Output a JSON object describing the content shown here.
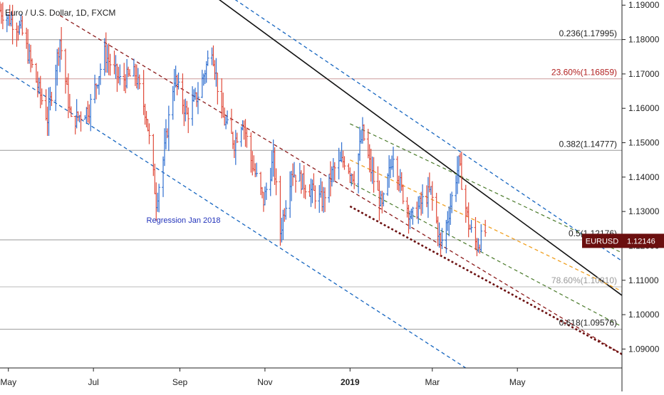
{
  "chart_data": {
    "type": "candlestick-bars",
    "title": "Euro / U.S. Dollar, 1D, FXCM",
    "symbol_badge": "EURUSD",
    "last_price": 1.12146,
    "last_price_label": "1.12146",
    "ylim": [
      1.0845,
      1.1915
    ],
    "y_ticks": [
      "1.19000",
      "1.18000",
      "1.17000",
      "1.16000",
      "1.15000",
      "1.14000",
      "1.13000",
      "1.12000",
      "1.11000",
      "1.10000",
      "1.09000"
    ],
    "y_tick_values": [
      1.19,
      1.18,
      1.17,
      1.16,
      1.15,
      1.14,
      1.13,
      1.12,
      1.11,
      1.1,
      1.09
    ],
    "x_ticks": [
      {
        "label": "May",
        "date": "2018-05-01",
        "bold": false
      },
      {
        "label": "Jul",
        "date": "2018-07-01",
        "bold": false
      },
      {
        "label": "Sep",
        "date": "2018-09-01",
        "bold": false
      },
      {
        "label": "Nov",
        "date": "2018-11-01",
        "bold": false
      },
      {
        "label": "2019",
        "date": "2019-01-01",
        "bold": true
      },
      {
        "label": "Mar",
        "date": "2019-03-01",
        "bold": false
      },
      {
        "label": "May",
        "date": "2019-05-01",
        "bold": false
      }
    ],
    "x_range": [
      "2018-04-25",
      "2019-07-15"
    ],
    "levels": [
      {
        "label": "0.236(1.17995)",
        "value": 1.17995,
        "color": "#999999",
        "text_color": "#222222"
      },
      {
        "label": "23.60%(1.16859)",
        "value": 1.16859,
        "color": "#cc9a9a",
        "text_color": "#b22222"
      },
      {
        "label": "0.382(1.14777)",
        "value": 1.14777,
        "color": "#999999",
        "text_color": "#222222"
      },
      {
        "label": "0.5(1.12176)",
        "value": 1.12176,
        "color": "#999999",
        "text_color": "#222222"
      },
      {
        "label": "78.60%(1.10810)",
        "value": 1.1081,
        "color": "#bbbbbb",
        "text_color": "#999999"
      },
      {
        "label": "0.618(1.09576)",
        "value": 1.09576,
        "color": "#999999",
        "text_color": "#222222"
      }
    ],
    "annotations": [
      {
        "text": "Regression Jan 2018",
        "date": "2018-08-08",
        "value": 1.1267
      }
    ],
    "trend_lines": [
      {
        "name": "downtrend",
        "color": "#111111",
        "dash": "",
        "width": 1.6,
        "from": [
          "2018-09-01",
          1.2
        ],
        "to": [
          "2019-07-15",
          1.1056
        ]
      },
      {
        "name": "regression-upper",
        "color": "#1565c0",
        "dash": "5,4",
        "width": 1.3,
        "from": [
          "2018-09-10",
          1.2
        ],
        "to": [
          "2019-07-15",
          1.1156
        ]
      },
      {
        "name": "regression-lower",
        "color": "#1565c0",
        "dash": "5,4",
        "width": 1.3,
        "from": [
          "2018-04-25",
          1.172
        ],
        "to": [
          "2019-03-25",
          1.0845
        ]
      },
      {
        "name": "regression-mid",
        "color": "#8b1a1a",
        "dash": "5,4",
        "width": 1.3,
        "from": [
          "2018-06-07",
          1.187
        ],
        "to": [
          "2019-07-15",
          1.0885
        ]
      },
      {
        "name": "channel-upper",
        "color": "#4a7a2a",
        "dash": "5,4",
        "width": 1.2,
        "from": [
          "2019-01-01",
          1.1555
        ],
        "to": [
          "2019-07-15",
          1.118
        ]
      },
      {
        "name": "channel-mid",
        "color": "#f0a020",
        "dash": "5,4",
        "width": 1.3,
        "from": [
          "2019-01-01",
          1.145
        ],
        "to": [
          "2019-07-15",
          1.1068
        ]
      },
      {
        "name": "channel-lower",
        "color": "#4a7a2a",
        "dash": "5,4",
        "width": 1.2,
        "from": [
          "2019-01-01",
          1.1385
        ],
        "to": [
          "2019-07-15",
          1.0965
        ]
      },
      {
        "name": "channel-base",
        "color": "#6b0f0f",
        "dash": "3,3",
        "width": 2.6,
        "from": [
          "2019-01-01",
          1.1315
        ],
        "to": [
          "2019-07-15",
          1.0885
        ]
      }
    ],
    "price_path": [
      [
        "2018-04-25",
        1.1885
      ],
      [
        "2018-05-10",
        1.183
      ],
      [
        "2018-05-18",
        1.172
      ],
      [
        "2018-05-29",
        1.157
      ],
      [
        "2018-06-07",
        1.18
      ],
      [
        "2018-06-15",
        1.156
      ],
      [
        "2018-06-28",
        1.16
      ],
      [
        "2018-07-09",
        1.176
      ],
      [
        "2018-07-20",
        1.168
      ],
      [
        "2018-07-31",
        1.17
      ],
      [
        "2018-08-08",
        1.158
      ],
      [
        "2018-08-15",
        1.133
      ],
      [
        "2018-08-20",
        1.145
      ],
      [
        "2018-08-28",
        1.169
      ],
      [
        "2018-09-06",
        1.158
      ],
      [
        "2018-09-14",
        1.164
      ],
      [
        "2018-09-24",
        1.178
      ],
      [
        "2018-10-01",
        1.158
      ],
      [
        "2018-10-10",
        1.15
      ],
      [
        "2018-10-16",
        1.157
      ],
      [
        "2018-10-22",
        1.145
      ],
      [
        "2018-10-31",
        1.133
      ],
      [
        "2018-11-07",
        1.145
      ],
      [
        "2018-11-12",
        1.124
      ],
      [
        "2018-11-20",
        1.142
      ],
      [
        "2018-11-29",
        1.138
      ],
      [
        "2018-12-12",
        1.133
      ],
      [
        "2018-12-20",
        1.142
      ],
      [
        "2018-12-28",
        1.145
      ],
      [
        "2019-01-04",
        1.14
      ],
      [
        "2019-01-10",
        1.153
      ],
      [
        "2019-01-16",
        1.142
      ],
      [
        "2019-01-24",
        1.131
      ],
      [
        "2019-02-01",
        1.147
      ],
      [
        "2019-02-07",
        1.136
      ],
      [
        "2019-02-14",
        1.128
      ],
      [
        "2019-02-22",
        1.133
      ],
      [
        "2019-02-28",
        1.136
      ],
      [
        "2019-03-07",
        1.12
      ],
      [
        "2019-03-12",
        1.128
      ],
      [
        "2019-03-20",
        1.144
      ],
      [
        "2019-03-27",
        1.126
      ],
      [
        "2019-04-02",
        1.12
      ],
      [
        "2019-04-08",
        1.124
      ]
    ]
  }
}
